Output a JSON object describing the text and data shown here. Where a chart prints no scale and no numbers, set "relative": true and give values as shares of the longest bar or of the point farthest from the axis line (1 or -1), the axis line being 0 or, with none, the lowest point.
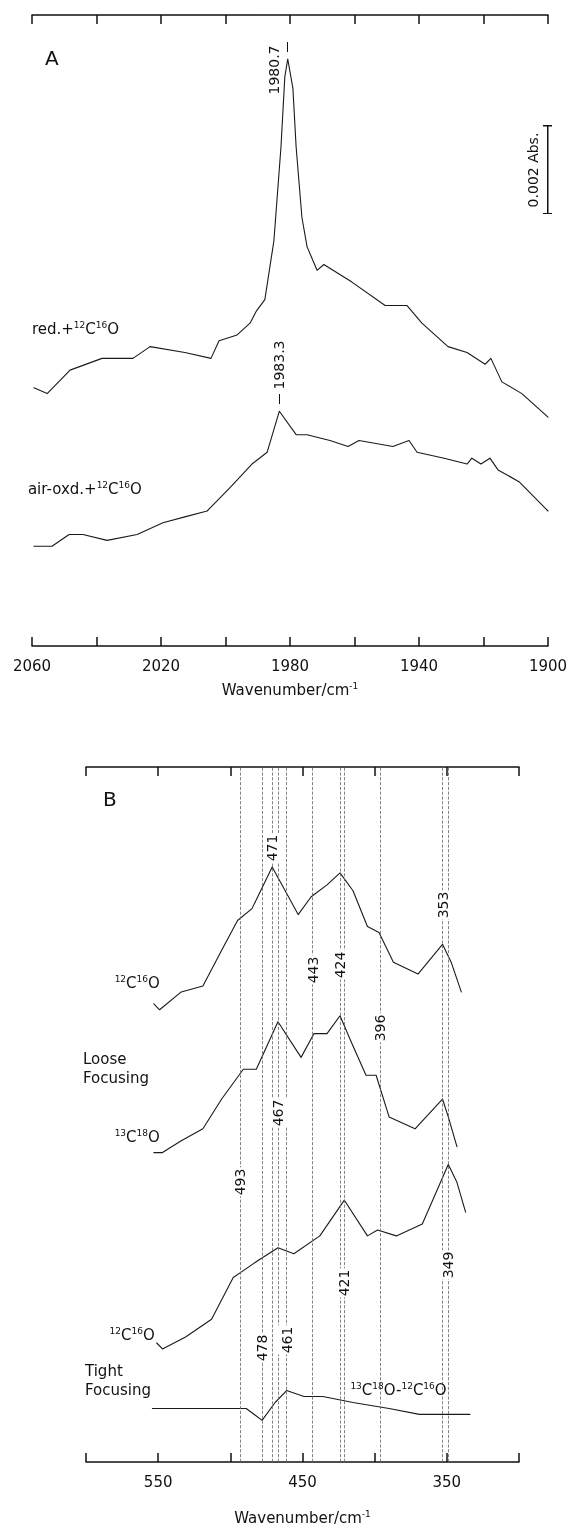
{
  "chart_data": [
    {
      "type": "line",
      "title": "A",
      "xlabel": "Wavenumber/cm$^{-1}$",
      "relative": true,
      "grid": false,
      "marker": "none",
      "line_style": "solid",
      "xlim": [
        2060,
        1900
      ],
      "xticks": [
        2060,
        {
          "value": 2040,
          "label": null
        },
        2020,
        {
          "value": 2000,
          "label": null
        },
        1980,
        {
          "value": 1960,
          "label": null
        },
        1940,
        {
          "value": 1920,
          "label": null
        },
        1900
      ],
      "series": [
        {
          "name": "red.+$^{12}$C$^{16}$O",
          "color": "#1a1a1a",
          "x": [
            2059.4,
            2055.3,
            2048.2,
            2038.3,
            2028.7,
            2023.4,
            2012.6,
            2004.5,
            2002.0,
            1996.4,
            1992.4,
            1990.5,
            1987.8,
            1985.0,
            1982.8,
            1981.6,
            1980.7,
            1979.1,
            1978.1,
            1976.3,
            1974.7,
            1971.6,
            1969.5,
            1960.8,
            1950.5,
            1943.7,
            1939.1,
            1931.0,
            1925.1,
            1919.5,
            1917.7,
            1914.3,
            1908.1,
            1900
          ],
          "values": [
            0.44,
            0.43,
            0.47,
            0.49,
            0.49,
            0.51,
            0.5,
            0.49,
            0.52,
            0.53,
            0.55,
            0.57,
            0.59,
            0.69,
            0.85,
            0.97,
            1,
            0.95,
            0.85,
            0.73,
            0.68,
            0.64,
            0.65,
            0.62,
            0.58,
            0.58,
            0.55,
            0.51,
            0.5,
            0.48,
            0.49,
            0.45,
            0.43,
            0.39
          ]
        },
        {
          "name": "air-oxd.+$^{12}$C$^{16}$O",
          "color": "#1a1a1a",
          "x": [
            2059.4,
            2053.8,
            2048.5,
            2044.2,
            2036.7,
            2027.4,
            2019.4,
            2012.6,
            2005.7,
            1998.6,
            1991.8,
            1987.1,
            1983.3,
            1978.1,
            1974.7,
            1967.6,
            1962.0,
            1958.6,
            1948.1,
            1943.1,
            1940.6,
            1932.2,
            1925.1,
            1923.6,
            1920.8,
            1918.0,
            1915.5,
            1909.0,
            1900
          ],
          "values": [
            0.17,
            0.17,
            0.19,
            0.19,
            0.18,
            0.19,
            0.21,
            0.22,
            0.23,
            0.27,
            0.31,
            0.33,
            0.4,
            0.36,
            0.36,
            0.35,
            0.34,
            0.35,
            0.34,
            0.35,
            0.33,
            0.32,
            0.31,
            0.32,
            0.31,
            0.32,
            0.3,
            0.28,
            0.23
          ]
        }
      ],
      "annotations": [
        "0.002 Abs.",
        {
          "text": "1980.7",
          "x": 1980.7,
          "y": 1
        },
        {
          "text": "1983.3",
          "x": 1983.3,
          "y": 0.4
        }
      ]
    },
    {
      "type": "line",
      "title": "B",
      "xlabel": "Wavenumber/cm$^{-1}$",
      "relative": true,
      "grid": false,
      "marker": "none",
      "line_style": "solid",
      "xlim": [
        600,
        300
      ],
      "xticks": [
        {
          "value": 600,
          "label": null
        },
        550,
        {
          "value": 500,
          "label": null
        },
        450,
        {
          "value": 400,
          "label": null
        },
        350,
        {
          "value": 300,
          "label": null
        }
      ],
      "series": [
        {
          "name": "$^{12}$C$^{16}$O",
          "color": "#1a1a1a",
          "x": [
            553,
            549,
            534,
            519,
            506,
            495,
            485,
            471,
            462,
            453,
            444,
            433,
            424,
            415,
            405,
            397,
            387,
            370,
            353,
            347,
            340
          ],
          "values": [
            0.77,
            0.76,
            0.79,
            0.8,
            0.86,
            0.91,
            0.93,
            1,
            0.96,
            0.92,
            0.95,
            0.97,
            0.99,
            0.96,
            0.9,
            0.89,
            0.84,
            0.82,
            0.87,
            0.84,
            0.79
          ]
        },
        {
          "name": "$^{13}$C$^{18}$O",
          "color": "#1a1a1a",
          "x": [
            553,
            547,
            534,
            519,
            506,
            491,
            482,
            467,
            451,
            442,
            433,
            424,
            417,
            406,
            399,
            390,
            372,
            353,
            349,
            343
          ],
          "values": [
            0.52,
            0.52,
            0.54,
            0.56,
            0.61,
            0.66,
            0.66,
            0.74,
            0.68,
            0.72,
            0.72,
            0.75,
            0.71,
            0.65,
            0.65,
            0.58,
            0.56,
            0.61,
            0.58,
            0.53
          ]
        },
        {
          "name": "$^{12}$C$^{16}$O",
          "color": "#1a1a1a",
          "x": [
            551,
            547,
            531,
            513,
            498,
            492,
            480,
            467,
            456,
            438,
            421,
            405,
            398,
            385,
            367,
            349,
            343,
            337
          ],
          "values": [
            0.2,
            0.19,
            0.21,
            0.24,
            0.31,
            0.32,
            0.34,
            0.36,
            0.35,
            0.38,
            0.44,
            0.38,
            0.39,
            0.38,
            0.4,
            0.5,
            0.47,
            0.42
          ]
        },
        {
          "name": "$^{13}$C$^{18}$O-$^{12}$C$^{16}$O",
          "color": "#1a1a1a",
          "x": [
            554,
            539,
            524,
            500,
            489,
            478,
            469,
            461,
            449,
            436,
            415,
            390,
            369,
            353,
            334
          ],
          "values": [
            0.09,
            0.09,
            0.09,
            0.09,
            0.09,
            0.07,
            0.1,
            0.12,
            0.11,
            0.11,
            0.1,
            0.09,
            0.08,
            0.08,
            0.08
          ]
        }
      ],
      "ref_lines": [
        {
          "axis": "x",
          "value": 471,
          "label": "471",
          "color": "#666666",
          "line_style": "dashed"
        },
        {
          "axis": "x",
          "value": 443,
          "label": "443",
          "color": "#666666",
          "line_style": "dashed"
        },
        {
          "axis": "x",
          "value": 424,
          "label": "424",
          "color": "#666666",
          "line_style": "dashed"
        },
        {
          "axis": "x",
          "value": 396,
          "label": "396",
          "color": "#666666",
          "line_style": "dashed"
        },
        {
          "axis": "x",
          "value": 353,
          "label": "353",
          "color": "#666666",
          "line_style": "dashed"
        },
        {
          "axis": "x",
          "value": 493,
          "label": "493",
          "color": "#666666",
          "line_style": "dashed"
        },
        {
          "axis": "x",
          "value": 467,
          "label": "467",
          "color": "#666666",
          "line_style": "dashed"
        },
        {
          "axis": "x",
          "value": 421,
          "label": "421",
          "color": "#666666",
          "line_style": "dashed"
        },
        {
          "axis": "x",
          "value": 349,
          "label": "349",
          "color": "#666666",
          "line_style": "dashed"
        },
        {
          "axis": "x",
          "value": 478,
          "label": "478",
          "color": "#666666",
          "line_style": "dashed"
        },
        {
          "axis": "x",
          "value": 461,
          "label": "461",
          "color": "#666666",
          "line_style": "dashed"
        }
      ],
      "annotations": [
        "Loose Focusing",
        "Tight Focusing"
      ]
    }
  ]
}
